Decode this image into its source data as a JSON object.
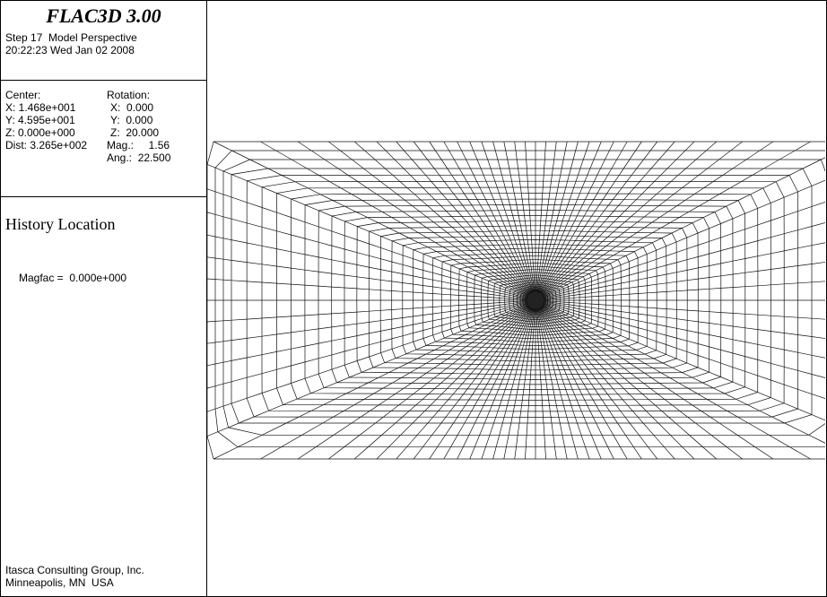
{
  "header": {
    "title": "FLAC3D 3.00",
    "step": "Step 17  Model Perspective",
    "timestamp": "20:22:23 Wed Jan 02 2008"
  },
  "view": {
    "center_label": "Center:",
    "rotation_label": "Rotation:",
    "center": [
      "X: 1.468e+001",
      "Y: 4.595e+001",
      "Z: 0.000e+000",
      "Dist: 3.265e+002"
    ],
    "rotation": [
      "X:  0.000",
      "Y:  0.000",
      "Z:  20.000",
      "Mag.:     1.56",
      "Ang.:  22.500"
    ]
  },
  "history": {
    "title": "History Location",
    "magfac": "Magfac =  0.000e+000"
  },
  "footer": {
    "company": "Itasca Consulting Group, Inc.",
    "location": "Minneapolis, MN  USA"
  }
}
